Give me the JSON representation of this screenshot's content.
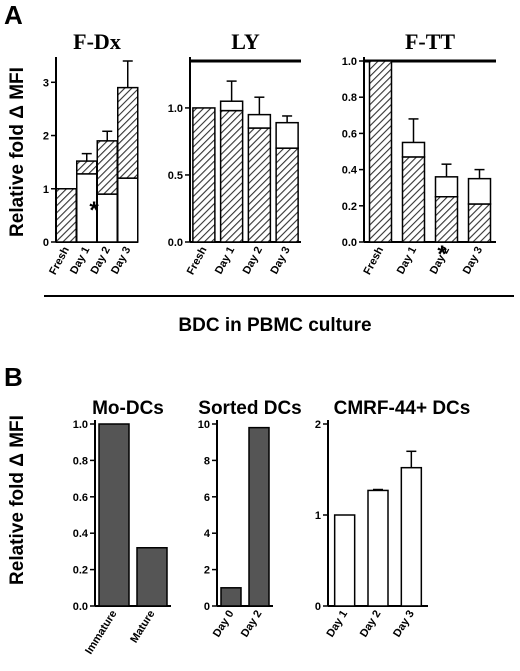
{
  "figure": {
    "panel_a_letter": "A",
    "panel_b_letter": "B",
    "y_label": "Relative fold Δ MFI",
    "bottom_label": "BDC in PBMC culture"
  },
  "colors": {
    "hatch": "#333333",
    "solid": "#555555",
    "outline": "#000000",
    "background": "#ffffff"
  },
  "chart_data": [
    {
      "type": "bar",
      "title": "F-Dx",
      "categories": [
        "Fresh",
        "Day 1",
        "Day 2",
        "Day 3"
      ],
      "ylim": [
        0,
        3.4
      ],
      "yticks": [
        0,
        1,
        2,
        3
      ],
      "stacked": true,
      "series": [
        {
          "values": [
            0,
            1.28,
            0.9,
            1.2
          ],
          "fill": "white",
          "err": [
            0,
            0,
            0.12,
            0.15
          ]
        },
        {
          "values": [
            1.0,
            0.24,
            1.0,
            1.7
          ],
          "fill": "hatch",
          "err": [
            0,
            0.14,
            0.18,
            0.5
          ]
        }
      ],
      "annotations": [
        {
          "text": "*",
          "category": "Day 2"
        }
      ]
    },
    {
      "type": "bar",
      "title": "LY",
      "categories": [
        "Fresh",
        "Day 1",
        "Day 2",
        "Day 3"
      ],
      "ylim": [
        0,
        1.35
      ],
      "yticks": [
        0,
        0.5,
        1.0
      ],
      "stacked": true,
      "series": [
        {
          "values": [
            1.0,
            0.98,
            0.85,
            0.7
          ],
          "fill": "hatch",
          "err": [
            0,
            0,
            0,
            0
          ]
        },
        {
          "values": [
            0,
            0.07,
            0.1,
            0.19
          ],
          "fill": "white",
          "err": [
            0,
            0.15,
            0.13,
            0.05
          ]
        }
      ]
    },
    {
      "type": "bar",
      "title": "F-TT",
      "categories": [
        "Fresh",
        "Day 1",
        "Day 2",
        "Day 3"
      ],
      "ylim": [
        0,
        1.0
      ],
      "yticks": [
        0,
        0.2,
        0.4,
        0.6,
        0.8,
        1.0
      ],
      "stacked": true,
      "series": [
        {
          "values": [
            1.0,
            0.47,
            0.25,
            0.21
          ],
          "fill": "hatch",
          "err": [
            0,
            0,
            0,
            0
          ]
        },
        {
          "values": [
            0,
            0.08,
            0.11,
            0.14
          ],
          "fill": "white",
          "err": [
            0,
            0.13,
            0.07,
            0.05
          ]
        }
      ],
      "annotations": [
        {
          "text": "*",
          "category": "Day 2"
        }
      ]
    },
    {
      "type": "bar",
      "title": "Mo-DCs",
      "categories": [
        "Immature",
        "Mature"
      ],
      "ylim": [
        0,
        1.0
      ],
      "yticks": [
        0,
        0.2,
        0.4,
        0.6,
        0.8,
        1.0
      ],
      "series": [
        {
          "values": [
            1.0,
            0.32
          ],
          "fill": "solid",
          "err": [
            0,
            0
          ]
        }
      ]
    },
    {
      "type": "bar",
      "title": "Sorted DCs",
      "categories": [
        "Day 0",
        "Day 2"
      ],
      "ylim": [
        0,
        10
      ],
      "yticks": [
        0,
        2,
        4,
        6,
        8,
        10
      ],
      "series": [
        {
          "values": [
            1.0,
            9.8
          ],
          "fill": "solid",
          "err": [
            0,
            0
          ]
        }
      ]
    },
    {
      "type": "bar",
      "title": "CMRF-44+ DCs",
      "categories": [
        "Day 1",
        "Day 2",
        "Day 3"
      ],
      "ylim": [
        0,
        2
      ],
      "yticks": [
        0,
        1,
        2
      ],
      "series": [
        {
          "values": [
            1.0,
            1.27,
            1.52
          ],
          "fill": "white",
          "err": [
            0,
            0.01,
            0.18
          ]
        }
      ]
    }
  ]
}
